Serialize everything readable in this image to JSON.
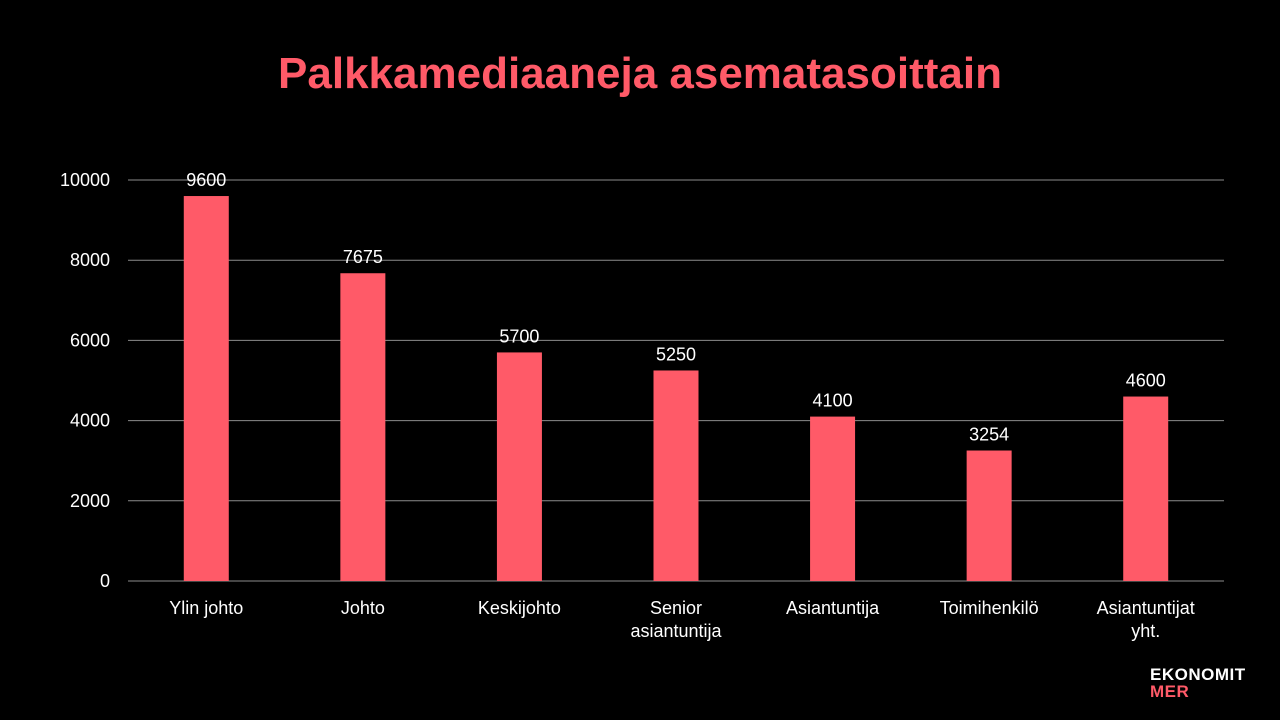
{
  "slide": {
    "title": "Palkkamediaaneja asematasoittain",
    "background_color": "#000000",
    "title_color": "#FF5A68",
    "text_color": "#FFFFFF",
    "grid_color": "#8C8C8C"
  },
  "chart_data": {
    "type": "bar",
    "title": "",
    "xlabel": "",
    "ylabel": "",
    "categories": [
      "Ylin johto",
      "Johto",
      "Keskijohto",
      "Senior asiantuntija",
      "Asiantuntija",
      "Toimihenkilö",
      "Asiantuntijat yht."
    ],
    "category_lines": [
      [
        "Ylin johto"
      ],
      [
        "Johto"
      ],
      [
        "Keskijohto"
      ],
      [
        "Senior",
        "asiantuntija"
      ],
      [
        "Asiantuntija"
      ],
      [
        "Toimihenkilö"
      ],
      [
        "Asiantuntijat",
        "yht."
      ]
    ],
    "values": [
      9600,
      7675,
      5700,
      5250,
      4100,
      3254,
      4600
    ],
    "data_labels": [
      "9600",
      "7675",
      "5700",
      "5250",
      "4100",
      "3254",
      "4600"
    ],
    "ylim": [
      0,
      10000
    ],
    "yticks": [
      0,
      2000,
      4000,
      6000,
      8000,
      10000
    ],
    "ytick_labels": [
      "0",
      "2000",
      "4000",
      "6000",
      "8000",
      "10000"
    ],
    "grid": true,
    "legend": "none",
    "bar_color": "#FF5A68"
  },
  "logo": {
    "line1": "EKONOMIT",
    "line2": "MER",
    "line1_color": "#FFFFFF",
    "line2_color": "#FF5A68"
  }
}
